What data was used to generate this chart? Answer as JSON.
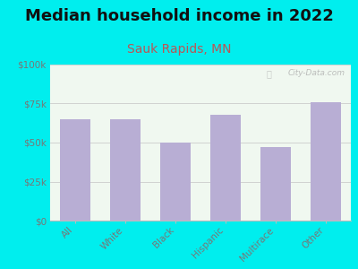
{
  "title": "Median household income in 2022",
  "subtitle": "Sauk Rapids, MN",
  "categories": [
    "All",
    "White",
    "Black",
    "Hispanic",
    "Multirace",
    "Other"
  ],
  "values": [
    65000,
    65000,
    50000,
    68000,
    47000,
    76000
  ],
  "bar_color": "#b8aed4",
  "background_outer": "#00eeee",
  "background_inner": "#f0f8f0",
  "title_color": "#111111",
  "subtitle_color": "#bb5555",
  "tick_label_color": "#777777",
  "watermark_text": "City-Data.com",
  "ylim": [
    0,
    100000
  ],
  "yticks": [
    0,
    25000,
    50000,
    75000,
    100000
  ],
  "ytick_labels": [
    "$0",
    "$25k",
    "$50k",
    "$75k",
    "$100k"
  ],
  "title_fontsize": 13,
  "subtitle_fontsize": 10
}
